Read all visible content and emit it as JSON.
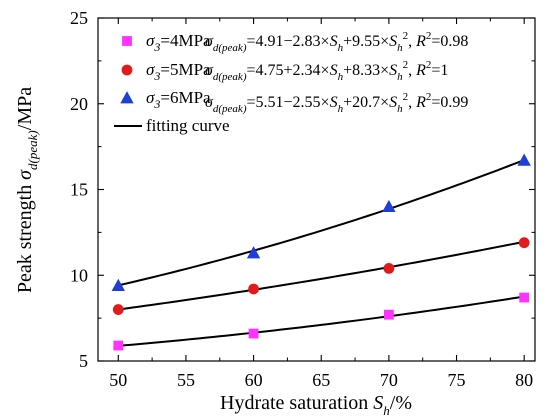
{
  "chart_data": {
    "type": "scatter",
    "xlim": [
      48.5,
      80.8
    ],
    "ylim": [
      5,
      25
    ],
    "xticks": [
      50,
      55,
      60,
      65,
      70,
      75,
      80
    ],
    "yticks": [
      5,
      10,
      15,
      20,
      25
    ],
    "x_tick_labels": [
      "50",
      "55",
      "60",
      "65",
      "70",
      "75",
      "80"
    ],
    "y_tick_labels": [
      "5",
      "10",
      "15",
      "20",
      "25"
    ],
    "ylabel": {
      "prefix": "Peak strength ",
      "symbol": "σ",
      "subscript": "d(peak)",
      "suffix": "/MPa"
    },
    "xlabel": {
      "prefix": "Hydrate saturation ",
      "symbol": "S",
      "subscript": "h",
      "suffix": "/%"
    },
    "series": [
      {
        "name": {
          "symbol": "σ",
          "subscript": "3",
          "suffix": "=4MPa"
        },
        "marker": "square",
        "color": "#ff33ff",
        "x": [
          50,
          60,
          70,
          80
        ],
        "y": [
          5.9,
          6.6,
          7.7,
          8.7
        ],
        "fit": {
          "a": 4.91,
          "b": -2.83,
          "c": 9.55
        },
        "equation": {
          "lhs_symbol": "σ",
          "lhs_subscript": "d(peak)",
          "body_1": "=4.91−2.83×",
          "var_symbol_1": "S",
          "var_subscript_1": "h",
          "body_2": "+9.55×",
          "var_symbol_2": "S",
          "var_subscript_2": "h",
          "power": "2",
          "tail": ", ",
          "r_symbol": "R",
          "r_power": "2",
          "r_value": "=0.98"
        }
      },
      {
        "name": {
          "symbol": "σ",
          "subscript": "3",
          "suffix": "=5MPa"
        },
        "marker": "circle",
        "color": "#e31a1c",
        "x": [
          50,
          60,
          70,
          80
        ],
        "y": [
          8.0,
          9.2,
          10.4,
          11.9
        ],
        "fit": {
          "a": 4.75,
          "b": 2.34,
          "c": 8.33
        },
        "equation": {
          "lhs_symbol": "σ",
          "lhs_subscript": "d(peak)",
          "body_1": "=4.75+2.34×",
          "var_symbol_1": "S",
          "var_subscript_1": "h",
          "body_2": "+8.33×",
          "var_symbol_2": "S",
          "var_subscript_2": "h",
          "power": "2",
          "tail": ", ",
          "r_symbol": "R",
          "r_power": "2",
          "r_value": "=1"
        }
      },
      {
        "name": {
          "symbol": "σ",
          "subscript": "3",
          "suffix": "=6MPa"
        },
        "marker": "triangle",
        "color": "#1f3fd6",
        "x": [
          50,
          60,
          70,
          80
        ],
        "y": [
          9.4,
          11.3,
          14.0,
          16.7
        ],
        "fit": {
          "a": 5.51,
          "b": -2.55,
          "c": 20.7
        },
        "equation": {
          "lhs_symbol": "σ",
          "lhs_subscript": "d(peak)",
          "body_1": "=5.51−2.55×",
          "var_symbol_1": "S",
          "var_subscript_1": "h",
          "body_2": "+20.7×",
          "var_symbol_2": "S",
          "var_subscript_2": "h",
          "power": "2",
          "tail": ", ",
          "r_symbol": "R",
          "r_power": "2",
          "r_value": "=0.99"
        }
      }
    ],
    "fitting_legend_label": "fitting curve"
  }
}
